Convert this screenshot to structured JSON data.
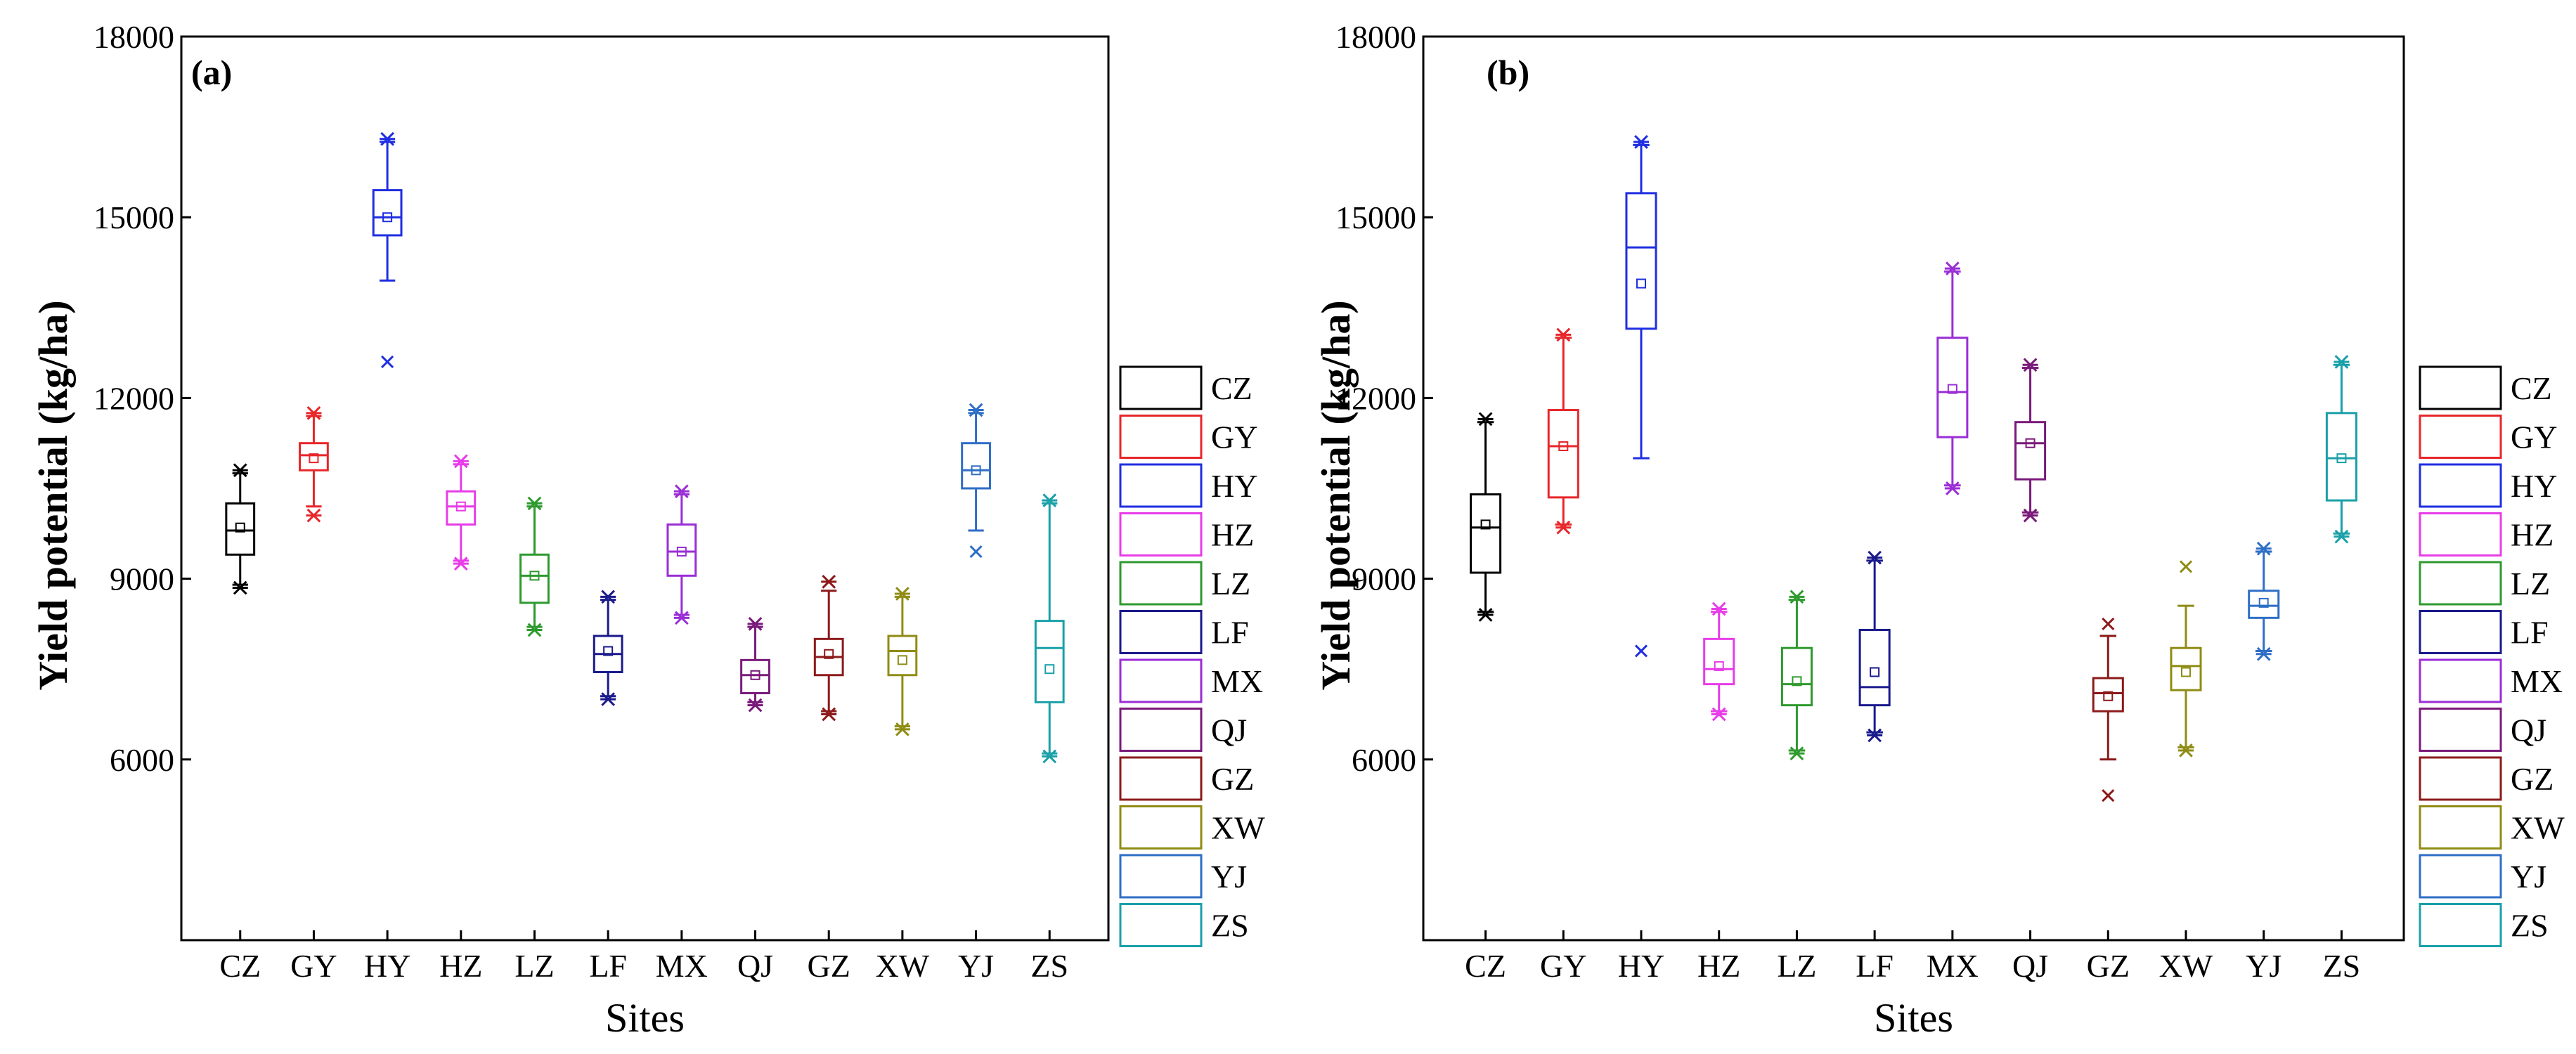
{
  "chart_data": [
    {
      "type": "box",
      "panel_label": "(a)",
      "xlabel": "Sites",
      "ylabel": "Yield potential (kg/ha)",
      "ylim": [
        3000,
        18000
      ],
      "yticks": [
        6000,
        9000,
        12000,
        15000,
        18000
      ],
      "ytick_labels": [
        "6000",
        "9000",
        "12000",
        "15000",
        "18000"
      ],
      "categories": [
        "CZ",
        "GY",
        "HY",
        "HZ",
        "LZ",
        "LF",
        "MX",
        "QJ",
        "GZ",
        "XW",
        "YJ",
        "ZS"
      ],
      "boxes": [
        {
          "site": "CZ",
          "q1": 9400,
          "median": 9800,
          "q3": 10250,
          "mean": 9850,
          "whisker_low": 8900,
          "whisker_high": 10750,
          "min": 8850,
          "max": 10800
        },
        {
          "site": "GY",
          "q1": 10800,
          "median": 11050,
          "q3": 11250,
          "mean": 11000,
          "whisker_low": 10200,
          "whisker_high": 11700,
          "min": 10050,
          "max": 11750
        },
        {
          "site": "HY",
          "q1": 14700,
          "median": 15000,
          "q3": 15450,
          "mean": 15000,
          "whisker_low": 13950,
          "whisker_high": 16250,
          "min": 12600,
          "max": 16300
        },
        {
          "site": "HZ",
          "q1": 9900,
          "median": 10200,
          "q3": 10450,
          "mean": 10200,
          "whisker_low": 9300,
          "whisker_high": 10900,
          "min": 9250,
          "max": 10950
        },
        {
          "site": "LZ",
          "q1": 8600,
          "median": 9050,
          "q3": 9400,
          "mean": 9050,
          "whisker_low": 8200,
          "whisker_high": 10200,
          "min": 8150,
          "max": 10250
        },
        {
          "site": "LF",
          "q1": 7450,
          "median": 7750,
          "q3": 8050,
          "mean": 7800,
          "whisker_low": 7050,
          "whisker_high": 8650,
          "min": 7000,
          "max": 8700
        },
        {
          "site": "MX",
          "q1": 9050,
          "median": 9450,
          "q3": 9900,
          "mean": 9450,
          "whisker_low": 8400,
          "whisker_high": 10400,
          "min": 8350,
          "max": 10450
        },
        {
          "site": "QJ",
          "q1": 7100,
          "median": 7400,
          "q3": 7650,
          "mean": 7400,
          "whisker_low": 6950,
          "whisker_high": 8200,
          "min": 6900,
          "max": 8250
        },
        {
          "site": "GZ",
          "q1": 7400,
          "median": 7700,
          "q3": 8000,
          "mean": 7750,
          "whisker_low": 6800,
          "whisker_high": 8800,
          "min": 6750,
          "max": 8950
        },
        {
          "site": "XW",
          "q1": 7400,
          "median": 7800,
          "q3": 8050,
          "mean": 7650,
          "whisker_low": 6550,
          "whisker_high": 8700,
          "min": 6500,
          "max": 8750
        },
        {
          "site": "YJ",
          "q1": 10500,
          "median": 10800,
          "q3": 11250,
          "mean": 10800,
          "whisker_low": 9800,
          "whisker_high": 11750,
          "min": 9450,
          "max": 11800
        },
        {
          "site": "ZS",
          "q1": 6950,
          "median": 7850,
          "q3": 8300,
          "mean": 7500,
          "whisker_low": 6100,
          "whisker_high": 10250,
          "min": 6050,
          "max": 10300
        }
      ],
      "legend": [
        "CZ",
        "GY",
        "HY",
        "HZ",
        "LZ",
        "LF",
        "MX",
        "QJ",
        "GZ",
        "XW",
        "YJ",
        "ZS"
      ],
      "legend_position": "right"
    },
    {
      "type": "box",
      "panel_label": "(b)",
      "xlabel": "Sites",
      "ylabel": "Yield potential (kg/ha)",
      "ylim": [
        3000,
        18000
      ],
      "yticks": [
        6000,
        9000,
        12000,
        15000,
        18000
      ],
      "ytick_labels": [
        "6000",
        "9000",
        "12000",
        "15000",
        "18000"
      ],
      "categories": [
        "CZ",
        "GY",
        "HY",
        "HZ",
        "LZ",
        "LF",
        "MX",
        "QJ",
        "GZ",
        "XW",
        "YJ",
        "ZS"
      ],
      "boxes": [
        {
          "site": "CZ",
          "q1": 9100,
          "median": 9850,
          "q3": 10400,
          "mean": 9900,
          "whisker_low": 8450,
          "whisker_high": 11600,
          "min": 8400,
          "max": 11650
        },
        {
          "site": "GY",
          "q1": 10350,
          "median": 11200,
          "q3": 11800,
          "mean": 11200,
          "whisker_low": 9900,
          "whisker_high": 13000,
          "min": 9850,
          "max": 13050
        },
        {
          "site": "HY",
          "q1": 13150,
          "median": 14500,
          "q3": 15400,
          "mean": 13900,
          "whisker_low": 11000,
          "whisker_high": 16200,
          "min": 7800,
          "max": 16250
        },
        {
          "site": "HZ",
          "q1": 7250,
          "median": 7500,
          "q3": 8000,
          "mean": 7550,
          "whisker_low": 6800,
          "whisker_high": 8450,
          "min": 6750,
          "max": 8500
        },
        {
          "site": "LZ",
          "q1": 6900,
          "median": 7250,
          "q3": 7850,
          "mean": 7300,
          "whisker_low": 6150,
          "whisker_high": 8650,
          "min": 6100,
          "max": 8700
        },
        {
          "site": "LF",
          "q1": 6900,
          "median": 7200,
          "q3": 8150,
          "mean": 7450,
          "whisker_low": 6450,
          "whisker_high": 9300,
          "min": 6400,
          "max": 9350
        },
        {
          "site": "MX",
          "q1": 11350,
          "median": 12100,
          "q3": 13000,
          "mean": 12150,
          "whisker_low": 10550,
          "whisker_high": 14100,
          "min": 10500,
          "max": 14150
        },
        {
          "site": "QJ",
          "q1": 10650,
          "median": 11250,
          "q3": 11600,
          "mean": 11250,
          "whisker_low": 10100,
          "whisker_high": 12500,
          "min": 10050,
          "max": 12550
        },
        {
          "site": "GZ",
          "q1": 6800,
          "median": 7100,
          "q3": 7350,
          "mean": 7050,
          "whisker_low": 6000,
          "whisker_high": 8050,
          "min": 5400,
          "max": 8250
        },
        {
          "site": "XW",
          "q1": 7150,
          "median": 7550,
          "q3": 7850,
          "mean": 7450,
          "whisker_low": 6200,
          "whisker_high": 8550,
          "min": 6150,
          "max": 9200
        },
        {
          "site": "YJ",
          "q1": 8350,
          "median": 8550,
          "q3": 8800,
          "mean": 8600,
          "whisker_low": 7800,
          "whisker_high": 9450,
          "min": 7750,
          "max": 9500
        },
        {
          "site": "ZS",
          "q1": 10300,
          "median": 11000,
          "q3": 11750,
          "mean": 11000,
          "whisker_low": 9750,
          "whisker_high": 12550,
          "min": 9700,
          "max": 12600
        }
      ],
      "legend": [
        "CZ",
        "GY",
        "HY",
        "HZ",
        "LZ",
        "LF",
        "MX",
        "QJ",
        "GZ",
        "XW",
        "YJ",
        "ZS"
      ],
      "legend_position": "right"
    }
  ],
  "colors": {
    "CZ": "#000000",
    "GY": "#e8262a",
    "HY": "#1f2ee0",
    "HZ": "#e83ce8",
    "LZ": "#2e9a2e",
    "LF": "#1a1a8c",
    "MX": "#9a2ed6",
    "QJ": "#7a1a7a",
    "GZ": "#8c1a1a",
    "XW": "#8f8c14",
    "YJ": "#2e6ec6",
    "ZS": "#1aa0a8"
  }
}
